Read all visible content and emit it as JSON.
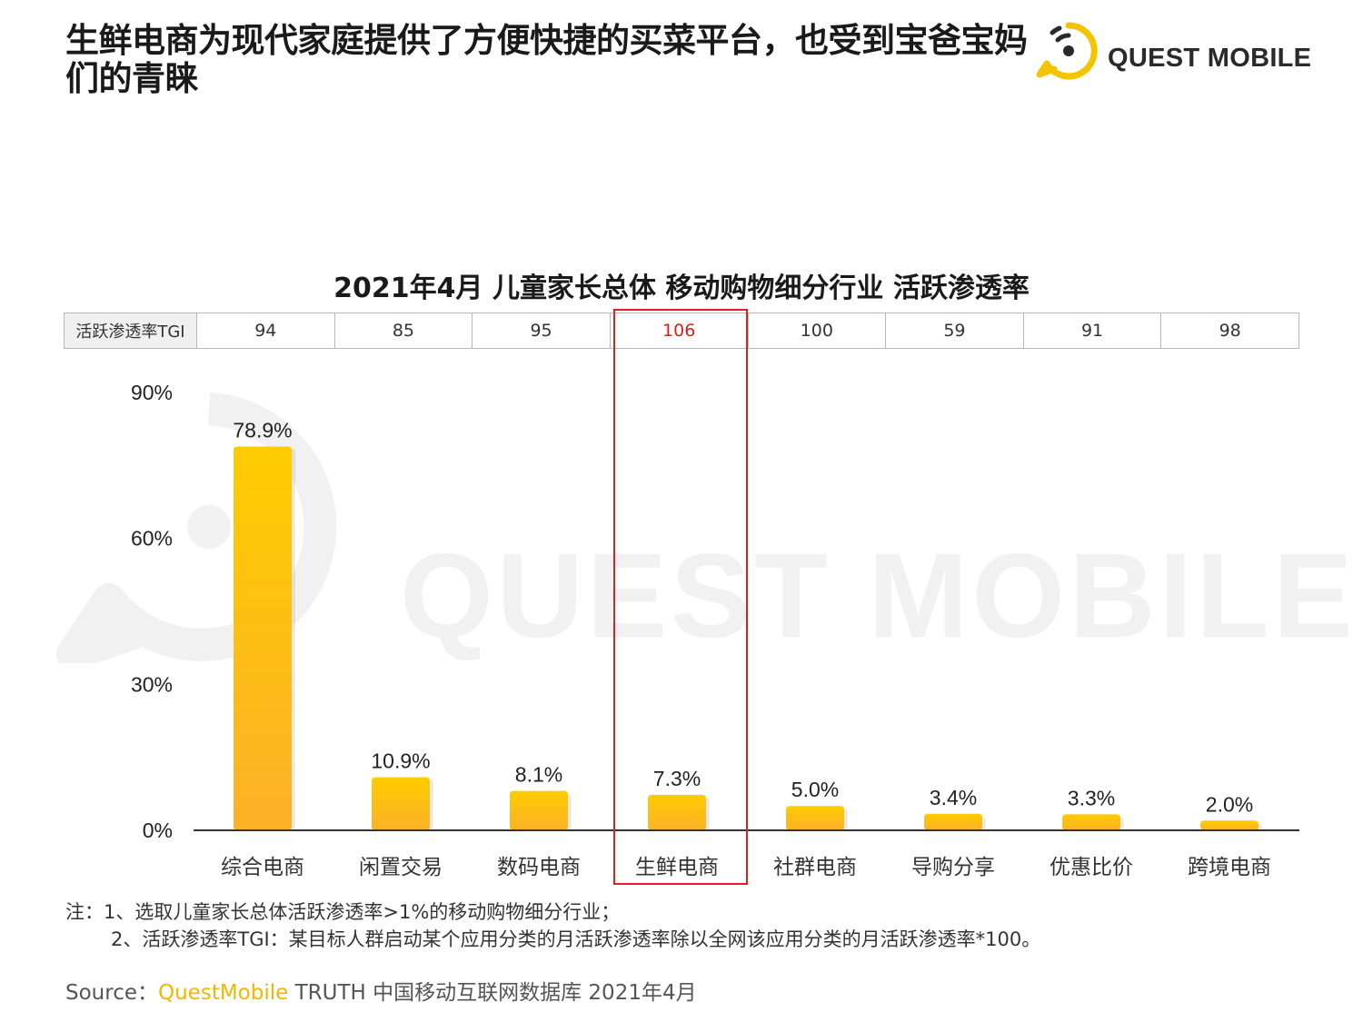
{
  "page": {
    "title": "生鲜电商为现代家庭提供了方便快捷的买菜平台，也受到宝爸宝妈们的青睐"
  },
  "logo": {
    "text": "QUEST MOBILE",
    "accent_color": "#F5C400"
  },
  "watermark": {
    "text": "QUEST MOBILE"
  },
  "tgi": {
    "label": "活跃渗透率TGI",
    "values": [
      "94",
      "85",
      "95",
      "106",
      "100",
      "59",
      "91",
      "98"
    ],
    "highlight_index": 3,
    "highlight_color": "#D81E1E"
  },
  "chart_data": {
    "type": "bar",
    "title": "2021年4月 儿童家长总体 移动购物细分行业 活跃渗透率",
    "categories": [
      "综合电商",
      "闲置交易",
      "数码电商",
      "生鲜电商",
      "社群电商",
      "导购分享",
      "优惠比价",
      "跨境电商"
    ],
    "values": [
      78.9,
      10.9,
      8.1,
      7.3,
      5.0,
      3.4,
      3.3,
      2.0
    ],
    "value_labels": [
      "78.9%",
      "10.9%",
      "8.1%",
      "7.3%",
      "5.0%",
      "3.4%",
      "3.3%",
      "2.0%"
    ],
    "y_ticks": [
      0,
      30,
      60,
      90
    ],
    "y_tick_labels": [
      "0%",
      "30%",
      "60%",
      "90%"
    ],
    "ylim": [
      0,
      90
    ],
    "xlabel": "",
    "ylabel": "",
    "grid": false,
    "bar_color_top": "#FFCC00",
    "bar_color_bottom": "#FBB128",
    "highlight_index": 3
  },
  "notes": {
    "line1": "注：1、选取儿童家长总体活跃渗透率>1%的移动购物细分行业；",
    "line2": "2、活跃渗透率TGI：某目标人群启动某个应用分类的月活跃渗透率除以全网该应用分类的月活跃渗透率*100。"
  },
  "source": {
    "prefix": "Source：",
    "brand": "QuestMobile",
    "rest": " TRUTH 中国移动互联网数据库 2021年4月"
  }
}
